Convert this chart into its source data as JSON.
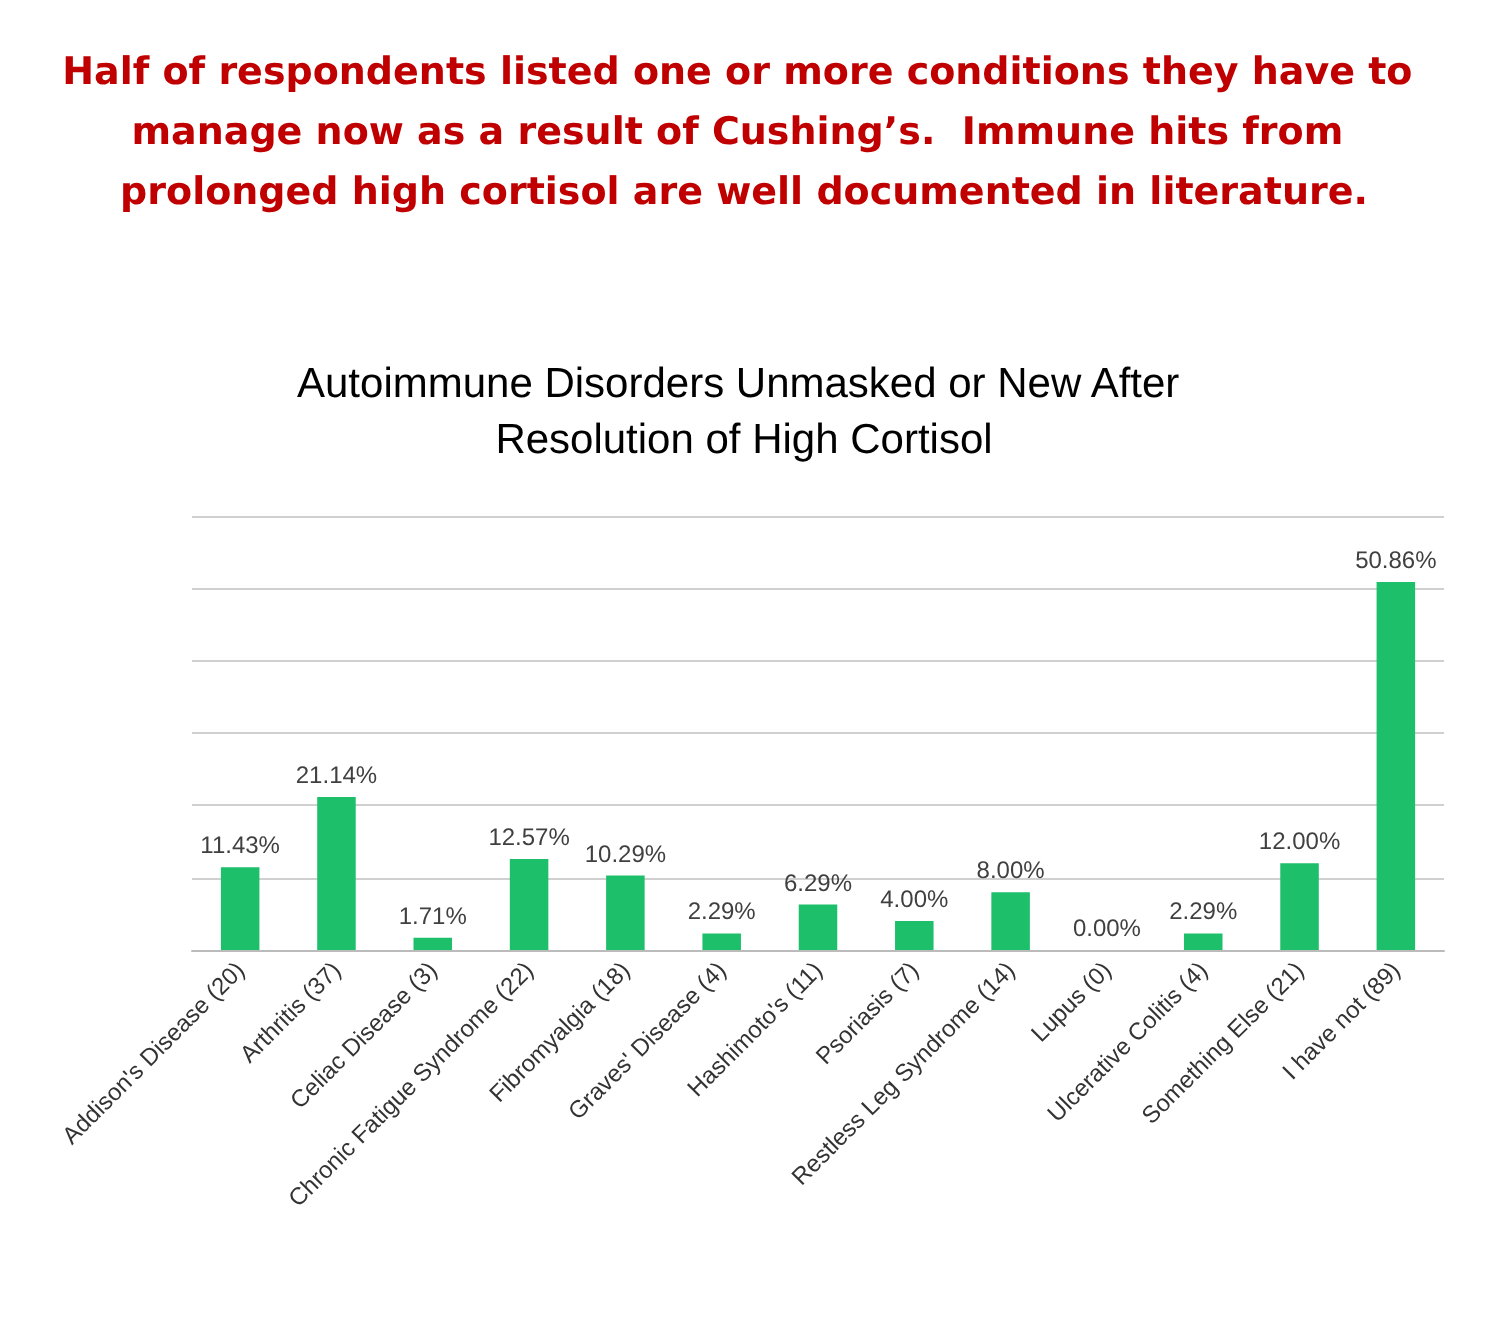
{
  "chart_data": {
    "type": "bar",
    "title": "Half of respondents listed one or more conditions they have to manage now as a result of Cushing’s.  Immune hits from prolonged high cortisol are well documented in literature.",
    "subtitle": "Autoimmune Disorders Unmasked or New After Resolution of High Cortisol",
    "categories": [
      "Addison's Disease (20)",
      "Arthritis (37)",
      "Celiac Disease (3)",
      "Chronic Fatigue Syndrome (22)",
      "Fibromyalgia (18)",
      "Graves' Disease (4)",
      "Hashimoto's (11)",
      "Psoriasis (7)",
      "Restless Leg Syndrome (14)",
      "Lupus (0)",
      "Ulcerative Colitis (4)",
      "Something Else (21)",
      "I have not (89)"
    ],
    "values": [
      11.43,
      21.14,
      1.71,
      12.57,
      10.29,
      2.29,
      6.29,
      4.0,
      8.0,
      0.0,
      2.29,
      12.0,
      50.86
    ],
    "value_labels": [
      "11.43%",
      "21.14%",
      "1.71%",
      "12.57%",
      "10.29%",
      "2.29%",
      "6.29%",
      "4.00%",
      "8.00%",
      "0.00%",
      "2.29%",
      "12.00%",
      "50.86%"
    ],
    "color": "#1dbf6b",
    "ylim": [
      0,
      60
    ],
    "yticks": [
      {
        "value": 0,
        "label": null
      },
      {
        "value": 10,
        "label": null
      },
      {
        "value": 20,
        "label": null
      },
      {
        "value": 30,
        "label": null
      },
      {
        "value": 40,
        "label": null
      },
      {
        "value": 50,
        "label": null
      },
      {
        "value": 60,
        "label": null
      }
    ],
    "tick_labels": "x",
    "grid": "y"
  }
}
